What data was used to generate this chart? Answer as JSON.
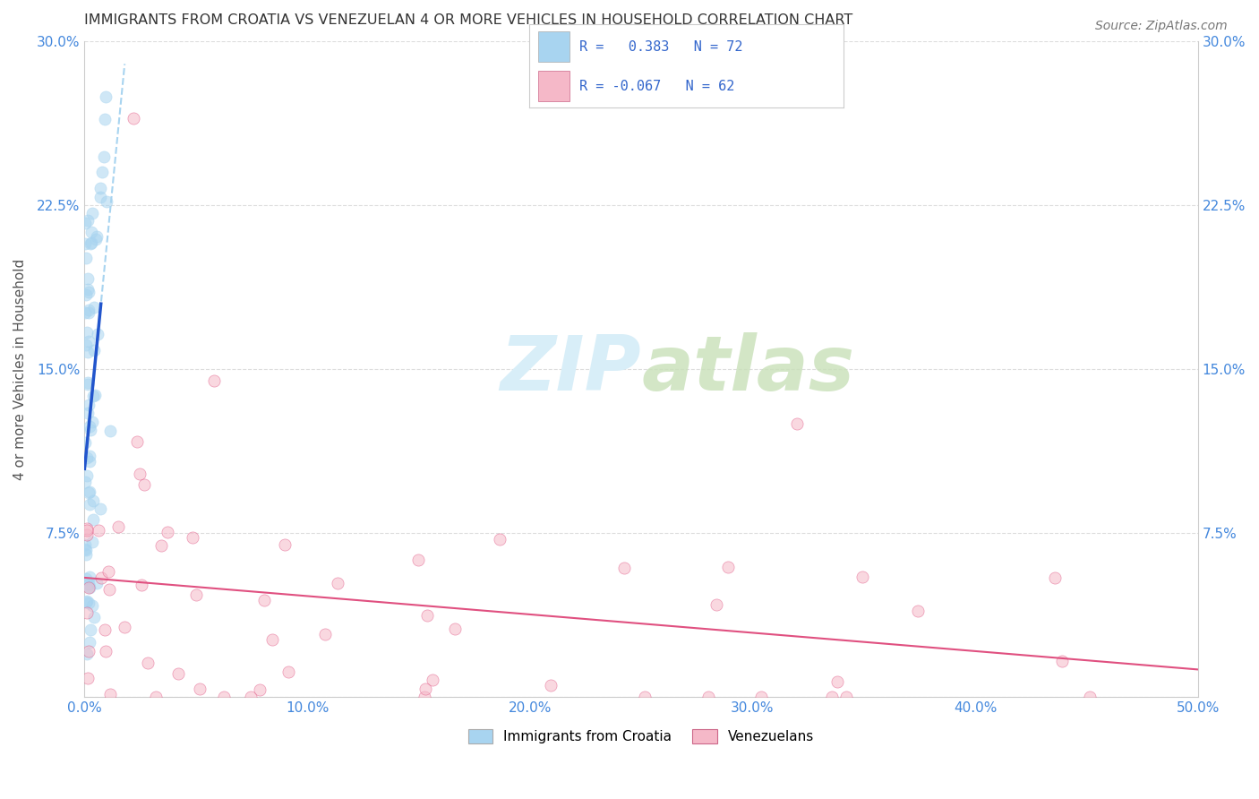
{
  "title": "IMMIGRANTS FROM CROATIA VS VENEZUELAN 4 OR MORE VEHICLES IN HOUSEHOLD CORRELATION CHART",
  "source": "Source: ZipAtlas.com",
  "ylabel": "4 or more Vehicles in Household",
  "xlim": [
    0.0,
    0.5
  ],
  "ylim": [
    0.0,
    0.3
  ],
  "xticks": [
    0.0,
    0.1,
    0.2,
    0.3,
    0.4,
    0.5
  ],
  "yticks": [
    0.0,
    0.075,
    0.15,
    0.225,
    0.3
  ],
  "xtick_labels": [
    "0.0%",
    "10.0%",
    "20.0%",
    "30.0%",
    "40.0%",
    "50.0%"
  ],
  "ytick_labels": [
    "",
    "7.5%",
    "15.0%",
    "22.5%",
    "30.0%"
  ],
  "legend1_text": "R =   0.383   N = 72",
  "legend2_text": "R = -0.067   N = 62",
  "legend_label1": "Immigrants from Croatia",
  "legend_label2": "Venezuelans",
  "r1": 0.383,
  "n1": 72,
  "r2": -0.067,
  "n2": 62,
  "color_blue": "#a8d4f0",
  "color_blue_line": "#2255cc",
  "color_blue_dashed": "#a8d4f0",
  "color_pink": "#f5b8c8",
  "color_pink_line": "#e05080",
  "watermark_zip": "ZIP",
  "watermark_atlas": "atlas",
  "watermark_color": "#d8eef8",
  "grid_color": "#dddddd",
  "title_color": "#333333",
  "scatter_alpha": 0.55,
  "scatter_size": 90
}
